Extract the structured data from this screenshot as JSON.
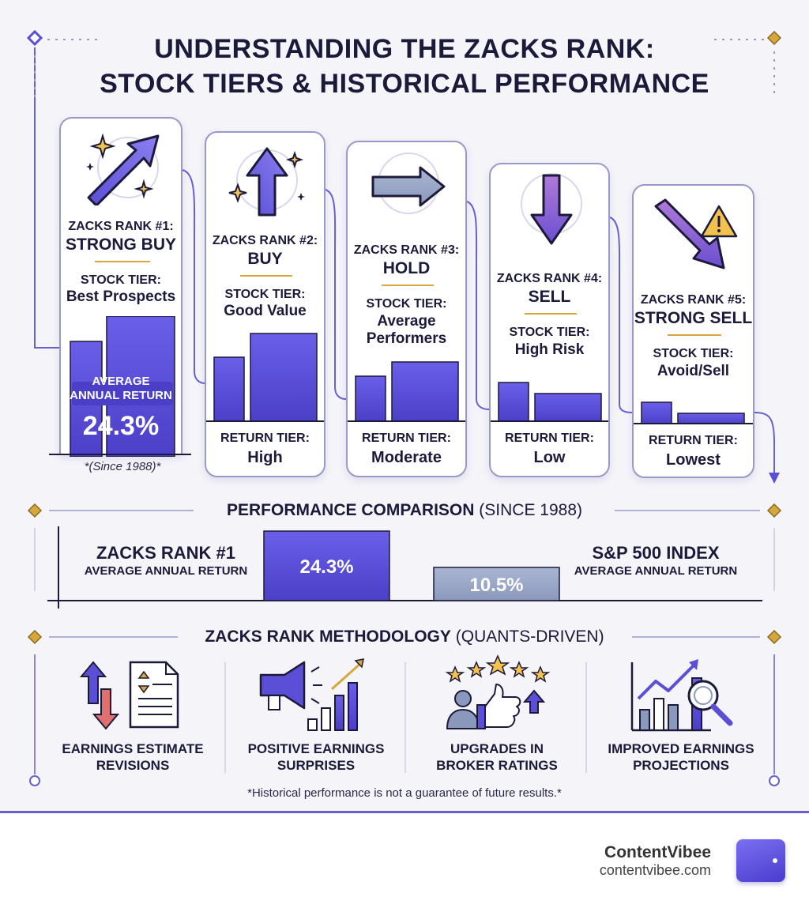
{
  "title": {
    "line1": "UNDERSTANDING THE ZACKS RANK:",
    "line2": "STOCK TIERS & HISTORICAL PERFORMANCE"
  },
  "ranks": [
    {
      "rank_label": "ZACKS RANK #1:",
      "rank_name": "STRONG BUY",
      "stock_tier_label": "STOCK TIER:",
      "stock_tier": "Best Prospects",
      "avg_label_1": "AVERAGE",
      "avg_label_2": "ANNUAL RETURN",
      "avg_value": "24.3%",
      "note": "*(Since 1988)*"
    },
    {
      "rank_label": "ZACKS RANK #2:",
      "rank_name": "BUY",
      "stock_tier_label": "STOCK TIER:",
      "stock_tier": "Good Value",
      "return_tier_label": "RETURN TIER:",
      "return_tier": "High"
    },
    {
      "rank_label": "ZACKS RANK #3:",
      "rank_name": "HOLD",
      "stock_tier_label": "STOCK TIER:",
      "stock_tier_1": "Average",
      "stock_tier_2": "Performers",
      "return_tier_label": "RETURN TIER:",
      "return_tier": "Moderate"
    },
    {
      "rank_label": "ZACKS RANK #4:",
      "rank_name": "SELL",
      "stock_tier_label": "STOCK TIER:",
      "stock_tier": "High Risk",
      "return_tier_label": "RETURN TIER:",
      "return_tier": "Low"
    },
    {
      "rank_label": "ZACKS RANK #5:",
      "rank_name": "STRONG SELL",
      "stock_tier_label": "STOCK TIER:",
      "stock_tier": "Avoid/Sell",
      "return_tier_label": "RETURN TIER:",
      "return_tier": "Lowest"
    }
  ],
  "comparison": {
    "title": "PERFORMANCE COMPARISON",
    "subtitle": "(SINCE 1988)",
    "left_title": "ZACKS RANK #1",
    "left_sub": "AVERAGE ANNUAL RETURN",
    "left_value": "24.3%",
    "left_number": 24.3,
    "right_title": "S&P 500 INDEX",
    "right_sub": "AVERAGE ANNUAL RETURN",
    "right_value": "10.5%",
    "right_number": 10.5
  },
  "methodology": {
    "title": "ZACKS RANK METHODOLOGY",
    "subtitle": "(QUANTS-DRIVEN)",
    "items": [
      {
        "line1": "EARNINGS ESTIMATE",
        "line2": "REVISIONS",
        "icon": "revision-arrows-document-icon"
      },
      {
        "line1": "POSITIVE EARNINGS",
        "line2": "SURPRISES",
        "icon": "megaphone-growth-chart-icon"
      },
      {
        "line1": "UPGRADES IN",
        "line2": "BROKER RATINGS",
        "icon": "thumbs-up-stars-icon"
      },
      {
        "line1": "IMPROVED EARNINGS",
        "line2": "PROJECTIONS",
        "icon": "chart-magnifier-icon"
      }
    ]
  },
  "disclaimer": "*Historical performance is not a guarantee of future results.*",
  "brand": {
    "name": "ContentVibee",
    "url": "contentvibee.com"
  },
  "colors": {
    "primary": "#5a4fd6",
    "gold": "#d6a83c",
    "ink": "#1c1a3a",
    "sp500": "#9aa8c8"
  }
}
